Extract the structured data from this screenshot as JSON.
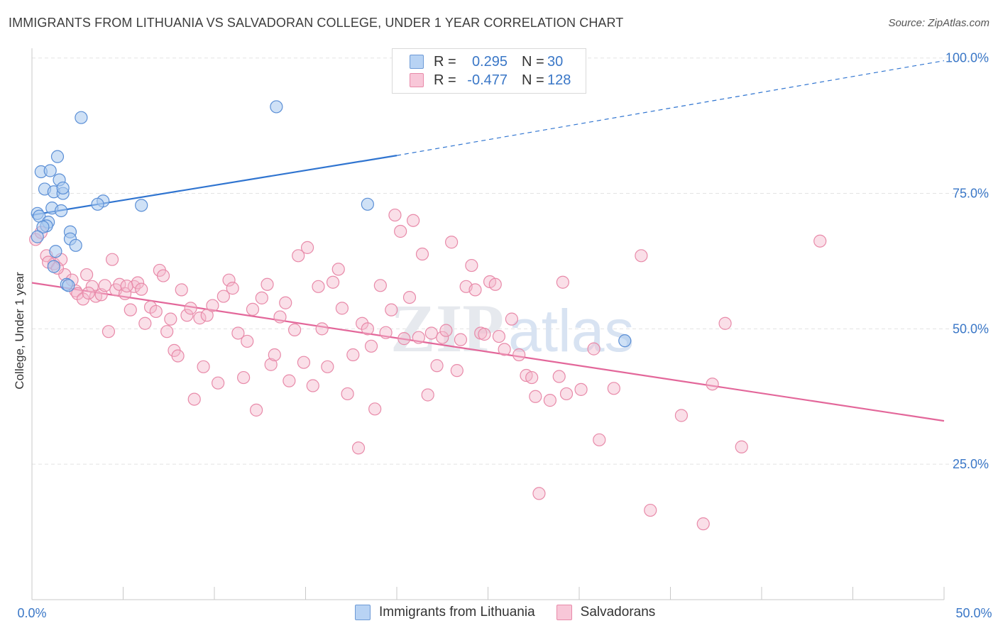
{
  "header": {
    "title": "IMMIGRANTS FROM LITHUANIA VS SALVADORAN COLLEGE, UNDER 1 YEAR CORRELATION CHART",
    "source": "Source: ZipAtlas.com"
  },
  "legend": {
    "rows": [
      {
        "r_label": "R =",
        "r_value": "0.295",
        "n_label": "N =",
        "n_value": "30"
      },
      {
        "r_label": "R =",
        "r_value": "-0.477",
        "n_label": "N =",
        "n_value": "128"
      }
    ]
  },
  "bottom_legend": {
    "series_a": "Immigrants from Lithuania",
    "series_b": "Salvadorans"
  },
  "watermark": {
    "part1": "ZIP",
    "part2": "atlas"
  },
  "colors": {
    "blue_fill": "#a8c8ef",
    "blue_stroke": "#5b8fd6",
    "blue_line": "#2f74d0",
    "pink_fill": "#f5b8cd",
    "pink_stroke": "#e88aa9",
    "pink_line": "#e3679a",
    "axis_text": "#3a77c7",
    "grid": "#e3e3e3"
  },
  "chart_data": {
    "type": "scatter",
    "ylabel": "College, Under 1 year",
    "x_tick_labels": [
      "0.0%",
      "50.0%"
    ],
    "y_tick_labels": [
      "100.0%",
      "75.0%",
      "50.0%",
      "25.0%"
    ],
    "xlim": [
      0,
      50
    ],
    "ylim": [
      0,
      102
    ],
    "y_gridlines": [
      25,
      50,
      75,
      100
    ],
    "series": [
      {
        "name": "Immigrants from Lithuania",
        "color": "#a8c8ef",
        "trend": {
          "x0": 0,
          "y0": 71.0,
          "x1": 20,
          "y1": 82.0,
          "dashed_to": 50,
          "dashed_y": 99.5
        },
        "points": [
          [
            2.7,
            89.0
          ],
          [
            13.4,
            91.0
          ],
          [
            1.4,
            81.8
          ],
          [
            0.5,
            79.0
          ],
          [
            1.0,
            79.2
          ],
          [
            1.5,
            77.5
          ],
          [
            0.7,
            75.8
          ],
          [
            1.2,
            75.3
          ],
          [
            1.7,
            75.0
          ],
          [
            1.7,
            76.0
          ],
          [
            3.9,
            73.6
          ],
          [
            3.6,
            73.0
          ],
          [
            6.0,
            72.8
          ],
          [
            18.4,
            73.0
          ],
          [
            1.1,
            72.3
          ],
          [
            1.6,
            71.8
          ],
          [
            0.3,
            71.3
          ],
          [
            0.4,
            70.8
          ],
          [
            0.9,
            69.7
          ],
          [
            0.8,
            69.0
          ],
          [
            0.6,
            68.8
          ],
          [
            2.1,
            67.9
          ],
          [
            2.1,
            66.6
          ],
          [
            2.4,
            65.4
          ],
          [
            0.3,
            67.0
          ],
          [
            1.3,
            64.3
          ],
          [
            1.2,
            61.5
          ],
          [
            1.9,
            58.2
          ],
          [
            2.0,
            58.0
          ],
          [
            32.5,
            47.8
          ]
        ]
      },
      {
        "name": "Salvadorans",
        "color": "#f5b8cd",
        "trend": {
          "x0": 0,
          "y0": 58.5,
          "x1": 50,
          "y1": 33.0
        },
        "points": [
          [
            0.2,
            66.5
          ],
          [
            0.5,
            67.8
          ],
          [
            0.8,
            63.5
          ],
          [
            1.2,
            62.0
          ],
          [
            1.6,
            62.8
          ],
          [
            1.8,
            60.0
          ],
          [
            2.2,
            59.0
          ],
          [
            2.4,
            57.0
          ],
          [
            2.5,
            56.5
          ],
          [
            2.8,
            55.5
          ],
          [
            3.0,
            60.0
          ],
          [
            3.3,
            57.8
          ],
          [
            3.5,
            56.0
          ],
          [
            3.8,
            56.3
          ],
          [
            4.0,
            58.0
          ],
          [
            4.2,
            49.5
          ],
          [
            4.4,
            62.8
          ],
          [
            4.6,
            57.2
          ],
          [
            4.8,
            58.2
          ],
          [
            5.1,
            56.5
          ],
          [
            5.4,
            53.5
          ],
          [
            5.6,
            57.8
          ],
          [
            5.8,
            58.5
          ],
          [
            6.0,
            57.3
          ],
          [
            6.2,
            51.0
          ],
          [
            6.5,
            54.0
          ],
          [
            6.8,
            53.2
          ],
          [
            7.0,
            60.8
          ],
          [
            7.2,
            59.8
          ],
          [
            7.4,
            49.5
          ],
          [
            7.6,
            51.8
          ],
          [
            7.8,
            46.0
          ],
          [
            8.0,
            45.0
          ],
          [
            8.2,
            57.2
          ],
          [
            8.5,
            52.5
          ],
          [
            8.7,
            53.8
          ],
          [
            8.9,
            37.0
          ],
          [
            9.2,
            52.0
          ],
          [
            9.4,
            43.0
          ],
          [
            9.6,
            52.5
          ],
          [
            9.9,
            54.3
          ],
          [
            10.2,
            40.0
          ],
          [
            10.5,
            56.0
          ],
          [
            10.8,
            59.0
          ],
          [
            11.0,
            57.5
          ],
          [
            11.3,
            49.2
          ],
          [
            11.6,
            41.0
          ],
          [
            11.8,
            47.7
          ],
          [
            12.1,
            53.6
          ],
          [
            12.3,
            35.0
          ],
          [
            12.6,
            55.7
          ],
          [
            12.9,
            58.2
          ],
          [
            13.1,
            43.4
          ],
          [
            13.3,
            45.2
          ],
          [
            13.6,
            52.2
          ],
          [
            13.9,
            54.8
          ],
          [
            14.1,
            40.4
          ],
          [
            14.4,
            49.8
          ],
          [
            14.6,
            63.5
          ],
          [
            14.9,
            43.8
          ],
          [
            15.1,
            65.0
          ],
          [
            15.4,
            39.5
          ],
          [
            15.7,
            57.8
          ],
          [
            15.9,
            50.0
          ],
          [
            16.2,
            43.0
          ],
          [
            16.5,
            58.6
          ],
          [
            16.8,
            61.0
          ],
          [
            17.0,
            53.8
          ],
          [
            17.3,
            38.0
          ],
          [
            17.6,
            45.2
          ],
          [
            17.9,
            28.0
          ],
          [
            18.1,
            51.0
          ],
          [
            18.4,
            50.0
          ],
          [
            18.6,
            46.8
          ],
          [
            18.8,
            35.2
          ],
          [
            19.1,
            58.0
          ],
          [
            19.4,
            49.3
          ],
          [
            19.7,
            53.5
          ],
          [
            19.9,
            71.0
          ],
          [
            20.2,
            68.0
          ],
          [
            20.4,
            48.2
          ],
          [
            20.7,
            55.8
          ],
          [
            20.9,
            70.0
          ],
          [
            21.2,
            48.4
          ],
          [
            21.4,
            63.8
          ],
          [
            21.7,
            37.8
          ],
          [
            21.9,
            49.2
          ],
          [
            22.2,
            43.2
          ],
          [
            22.5,
            48.4
          ],
          [
            22.7,
            49.7
          ],
          [
            23.0,
            66.0
          ],
          [
            23.3,
            42.3
          ],
          [
            23.5,
            48.0
          ],
          [
            23.8,
            57.8
          ],
          [
            24.1,
            61.7
          ],
          [
            24.3,
            57.2
          ],
          [
            24.6,
            49.2
          ],
          [
            24.8,
            49.0
          ],
          [
            25.1,
            58.7
          ],
          [
            25.4,
            58.2
          ],
          [
            25.6,
            48.6
          ],
          [
            25.9,
            46.2
          ],
          [
            26.3,
            51.8
          ],
          [
            26.7,
            45.2
          ],
          [
            27.1,
            41.4
          ],
          [
            27.4,
            41.0
          ],
          [
            27.6,
            37.5
          ],
          [
            27.8,
            19.6
          ],
          [
            28.4,
            36.8
          ],
          [
            28.9,
            41.2
          ],
          [
            29.1,
            58.6
          ],
          [
            29.3,
            38.0
          ],
          [
            30.1,
            38.8
          ],
          [
            30.8,
            46.3
          ],
          [
            31.1,
            29.5
          ],
          [
            31.9,
            39.0
          ],
          [
            33.4,
            63.5
          ],
          [
            33.9,
            16.5
          ],
          [
            35.6,
            34.0
          ],
          [
            36.8,
            14.0
          ],
          [
            37.3,
            39.8
          ],
          [
            38.0,
            51.0
          ],
          [
            38.9,
            28.2
          ],
          [
            43.2,
            66.2
          ],
          [
            0.9,
            62.3
          ],
          [
            1.4,
            61.2
          ],
          [
            3.1,
            56.6
          ],
          [
            5.2,
            57.9
          ]
        ]
      }
    ],
    "grid": true,
    "legend_position": "top-center"
  }
}
